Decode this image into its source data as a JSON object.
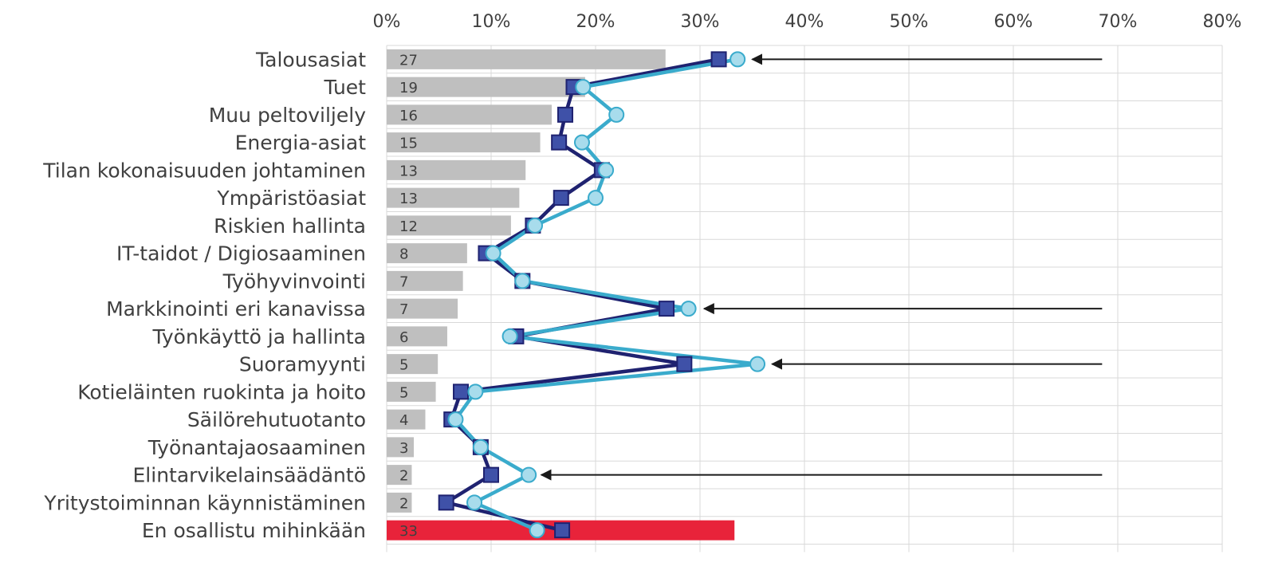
{
  "chart_data": {
    "type": "bar",
    "orientation": "horizontal",
    "title": "",
    "xlabel": "",
    "ylabel": "",
    "xlim": [
      0,
      80
    ],
    "x_ticks": [
      "0%",
      "10%",
      "20%",
      "30%",
      "40%",
      "50%",
      "60%",
      "70%",
      "80%"
    ],
    "grid": true,
    "legend": "none",
    "categories": [
      "Talousasiat",
      "Tuet",
      "Muu peltoviljely",
      "Energia-asiat",
      "Tilan kokonaisuuden johtaminen",
      "Ympäristöasiat",
      "Riskien hallinta",
      "IT-taidot / Digiosaaminen",
      "Työhyvinvointi",
      "Markkinointi eri kanavissa",
      "Työnkäyttö ja hallinta",
      "Suoramyynti",
      "Kotieläinten ruokinta ja hoito",
      "Säilörehutuotanto",
      "Työnantajaosaaminen",
      "Elintarvikelainsäädäntö",
      "Yritystoiminnan käynnistäminen",
      "En osallistu mihinkään"
    ],
    "bar_values": [
      26.7,
      19.0,
      15.8,
      14.7,
      13.3,
      12.7,
      11.9,
      7.7,
      7.3,
      6.8,
      5.8,
      4.9,
      4.7,
      3.7,
      2.6,
      2.4,
      2.4,
      33.3
    ],
    "bar_labels": [
      "27",
      "19",
      "16",
      "15",
      "13",
      "13",
      "12",
      "8",
      "7",
      "7",
      "6",
      "5",
      "5",
      "4",
      "3",
      "2",
      "2",
      "33"
    ],
    "bar_colors": [
      "#bfbfbf",
      "#bfbfbf",
      "#bfbfbf",
      "#bfbfbf",
      "#bfbfbf",
      "#bfbfbf",
      "#bfbfbf",
      "#bfbfbf",
      "#bfbfbf",
      "#bfbfbf",
      "#bfbfbf",
      "#bfbfbf",
      "#bfbfbf",
      "#bfbfbf",
      "#bfbfbf",
      "#bfbfbf",
      "#bfbfbf",
      "#e8233a"
    ],
    "series": [
      {
        "marker": "square",
        "color": "#1f2270",
        "fill": "#3f51a8",
        "values": [
          31.8,
          17.9,
          17.1,
          16.5,
          20.6,
          16.7,
          14.0,
          9.5,
          13.0,
          26.8,
          12.4,
          28.5,
          7.1,
          6.2,
          9.0,
          10.0,
          5.7,
          16.8
        ]
      },
      {
        "marker": "circle",
        "color": "#3aabcc",
        "fill": "#a8dcec",
        "values": [
          33.6,
          18.8,
          22.0,
          18.7,
          21.0,
          20.0,
          14.2,
          10.2,
          13.0,
          28.9,
          11.8,
          35.5,
          8.5,
          6.6,
          9.0,
          13.6,
          8.4,
          14.4
        ]
      }
    ],
    "arrows": [
      {
        "category": "Talousasiat",
        "from": 68.5,
        "to": 35.0
      },
      {
        "category": "Markkinointi eri kanavissa",
        "from": 68.5,
        "to": 30.4
      },
      {
        "category": "Suoramyynti",
        "from": 68.5,
        "to": 36.9
      },
      {
        "category": "Elintarvikelainsäädäntö",
        "from": 68.5,
        "to": 14.8
      }
    ]
  }
}
